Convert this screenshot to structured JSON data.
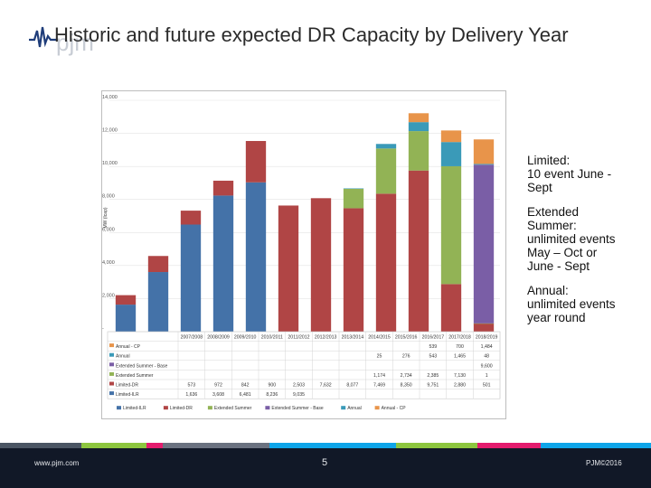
{
  "slide": {
    "title": "Historic and future expected DR Capacity by Delivery Year",
    "logo_text": "pjm",
    "notes": [
      {
        "lines": [
          "Limited:",
          "10 event June -",
          "Sept"
        ]
      },
      {
        "lines": [
          "Extended",
          "Summer:",
          "unlimited events",
          "May – Oct or",
          "June - Sept"
        ]
      },
      {
        "lines": [
          "Annual:",
          "unlimited events",
          "year round"
        ]
      }
    ],
    "footer": {
      "url": "www.pjm.com",
      "page": "5",
      "copyright": "PJM©2016"
    }
  },
  "colors": {
    "Limited-ILR": "#4472a8",
    "Limited-DR": "#b04545",
    "Extended Summer": "#92b355",
    "Extended Summer - Base": "#7a5ea6",
    "Annual": "#3a9ab8",
    "Annual - CP": "#e8944a"
  },
  "chart_data": {
    "type": "bar",
    "stacked": true,
    "title": "",
    "xlabel": "",
    "ylabel": "MW (Icap)",
    "ylim": [
      0,
      14000
    ],
    "yticks": [
      "-",
      "2,000",
      "4,000",
      "6,000",
      "8,000",
      "10,000",
      "12,000",
      "14,000"
    ],
    "categories": [
      "2007/2008",
      "2008/2009",
      "2009/2010",
      "2010/2011",
      "2011/2012",
      "2012/2013",
      "2013/2014",
      "2014/2015",
      "2015/2016",
      "2016/2017",
      "2017/2018",
      "2018/2019"
    ],
    "series": [
      {
        "name": "Limited-ILR",
        "values": [
          1636,
          3608,
          6481,
          8236,
          9035,
          0,
          0,
          0,
          0,
          0,
          0,
          0
        ]
      },
      {
        "name": "Limited-DR",
        "values": [
          573,
          972,
          842,
          900,
          2503,
          7632,
          8077,
          7469,
          8350,
          9751,
          2880,
          501
        ]
      },
      {
        "name": "Extended Summer",
        "values": [
          0,
          0,
          0,
          0,
          0,
          0,
          0,
          1174,
          2734,
          2385,
          7130,
          1
        ]
      },
      {
        "name": "Extended Summer - Base",
        "values": [
          0,
          0,
          0,
          0,
          0,
          0,
          0,
          0,
          0,
          0,
          0,
          9600
        ]
      },
      {
        "name": "Annual",
        "values": [
          0,
          0,
          0,
          0,
          0,
          0,
          0,
          25,
          276,
          543,
          1465,
          48
        ]
      },
      {
        "name": "Annual - CP",
        "values": [
          0,
          0,
          0,
          0,
          0,
          0,
          0,
          0,
          0,
          539,
          700,
          1484
        ]
      }
    ],
    "table_rows": [
      {
        "label": "Annual - CP",
        "cells": [
          "",
          "",
          "",
          "",
          "",
          "",
          "",
          "",
          "",
          "539",
          "700",
          "1,484"
        ]
      },
      {
        "label": "Annual",
        "cells": [
          "",
          "",
          "",
          "",
          "",
          "",
          "",
          "25",
          "276",
          "543",
          "1,465",
          "48"
        ]
      },
      {
        "label": "Extended Summer - Base",
        "cells": [
          "",
          "",
          "",
          "",
          "",
          "",
          "",
          "",
          "",
          "",
          "",
          "9,600"
        ]
      },
      {
        "label": "Extended Summer",
        "cells": [
          "",
          "",
          "",
          "",
          "",
          "",
          "",
          "1,174",
          "2,734",
          "2,385",
          "7,130",
          "1"
        ]
      },
      {
        "label": "Limited-DR",
        "cells": [
          "573",
          "972",
          "842",
          "900",
          "2,503",
          "7,632",
          "8,077",
          "7,469",
          "8,350",
          "9,751",
          "2,880",
          "501"
        ]
      },
      {
        "label": "Limited-ILR",
        "cells": [
          "1,636",
          "3,608",
          "6,481",
          "8,236",
          "9,035",
          "",
          "",
          "",
          "",
          "",
          "",
          ""
        ]
      }
    ],
    "legend": [
      "Limited-ILR",
      "Limited-DR",
      "Extended Summer",
      "Extended Summer - Base",
      "Annual",
      "Annual - CP"
    ],
    "legend_position": "bottom"
  }
}
